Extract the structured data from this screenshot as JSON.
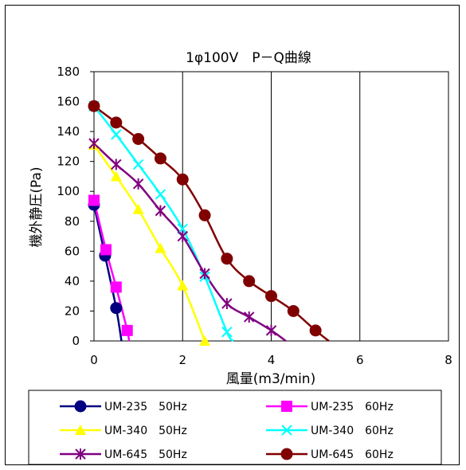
{
  "chart_data": {
    "type": "line",
    "title": "1φ100V　P－Q曲線",
    "xlabel": "風量(m3/min)",
    "ylabel": "機外静圧(Pa)",
    "xlim": [
      0,
      8
    ],
    "ylim": [
      0,
      180
    ],
    "xticks": [
      "0",
      "2",
      "4",
      "6",
      "8"
    ],
    "yticks": [
      "0",
      "20",
      "40",
      "60",
      "80",
      "100",
      "120",
      "140",
      "160",
      "180"
    ],
    "grid": "vertical",
    "legend_position": "bottom",
    "series": [
      {
        "name": "UM-235　50Hz",
        "color": "#000080",
        "marker": "circle",
        "x": [
          0,
          0.25,
          0.5,
          0.62
        ],
        "y": [
          91,
          57,
          22,
          0
        ],
        "points": [
          [
            0,
            91
          ],
          [
            0.25,
            57
          ],
          [
            0.5,
            22
          ]
        ]
      },
      {
        "name": "UM-235　60Hz",
        "color": "#ff00ff",
        "marker": "square",
        "x": [
          0,
          0.27,
          0.5,
          0.75,
          0.79
        ],
        "y": [
          94,
          61,
          36,
          7,
          0
        ],
        "points": [
          [
            0,
            94
          ],
          [
            0.27,
            61
          ],
          [
            0.5,
            36
          ],
          [
            0.75,
            7
          ]
        ]
      },
      {
        "name": "UM-340　50Hz",
        "color": "#ffff00",
        "marker": "triangle",
        "x": [
          0,
          0.5,
          1.0,
          1.5,
          2.0,
          2.5
        ],
        "y": [
          131,
          110,
          88,
          62,
          37,
          0
        ],
        "points": [
          [
            0,
            131
          ],
          [
            0.5,
            110
          ],
          [
            1.0,
            88
          ],
          [
            1.5,
            62
          ],
          [
            2.0,
            37
          ],
          [
            2.5,
            0
          ]
        ]
      },
      {
        "name": "UM-340　60Hz",
        "color": "#00ffff",
        "marker": "x",
        "x": [
          0,
          0.5,
          1.0,
          1.5,
          2.0,
          2.5,
          3.0,
          3.15
        ],
        "y": [
          157,
          138,
          118,
          98,
          75,
          43,
          6,
          0
        ],
        "points": [
          [
            0,
            157
          ],
          [
            0.5,
            138
          ],
          [
            1.0,
            118
          ],
          [
            1.5,
            98
          ],
          [
            2.0,
            75
          ],
          [
            2.5,
            43
          ],
          [
            3.0,
            6
          ]
        ]
      },
      {
        "name": "UM-645　50Hz",
        "color": "#800080",
        "marker": "star",
        "x": [
          0,
          0.5,
          1.0,
          1.5,
          2.0,
          2.5,
          3.0,
          3.5,
          4.0,
          4.33
        ],
        "y": [
          132,
          118,
          105,
          87,
          70,
          45,
          25,
          16,
          7,
          0
        ],
        "points": [
          [
            0,
            132
          ],
          [
            0.5,
            118
          ],
          [
            1.0,
            105
          ],
          [
            1.5,
            87
          ],
          [
            2.0,
            70
          ],
          [
            2.5,
            45
          ],
          [
            3.0,
            25
          ],
          [
            3.5,
            16
          ],
          [
            4.0,
            7
          ]
        ]
      },
      {
        "name": "UM-645　60Hz",
        "color": "#800000",
        "marker": "circle",
        "x": [
          0,
          0.5,
          1.0,
          1.5,
          2.0,
          2.5,
          3.0,
          3.5,
          4.0,
          4.5,
          5.0,
          5.3
        ],
        "y": [
          157,
          146,
          135,
          122,
          108,
          84,
          55,
          40,
          30,
          20,
          7,
          0
        ],
        "points": [
          [
            0,
            157
          ],
          [
            0.5,
            146
          ],
          [
            1.0,
            135
          ],
          [
            1.5,
            122
          ],
          [
            2.0,
            108
          ],
          [
            2.5,
            84
          ],
          [
            3.0,
            55
          ],
          [
            3.5,
            40
          ],
          [
            4.0,
            30
          ],
          [
            4.5,
            20
          ],
          [
            5.0,
            7
          ]
        ]
      }
    ]
  }
}
